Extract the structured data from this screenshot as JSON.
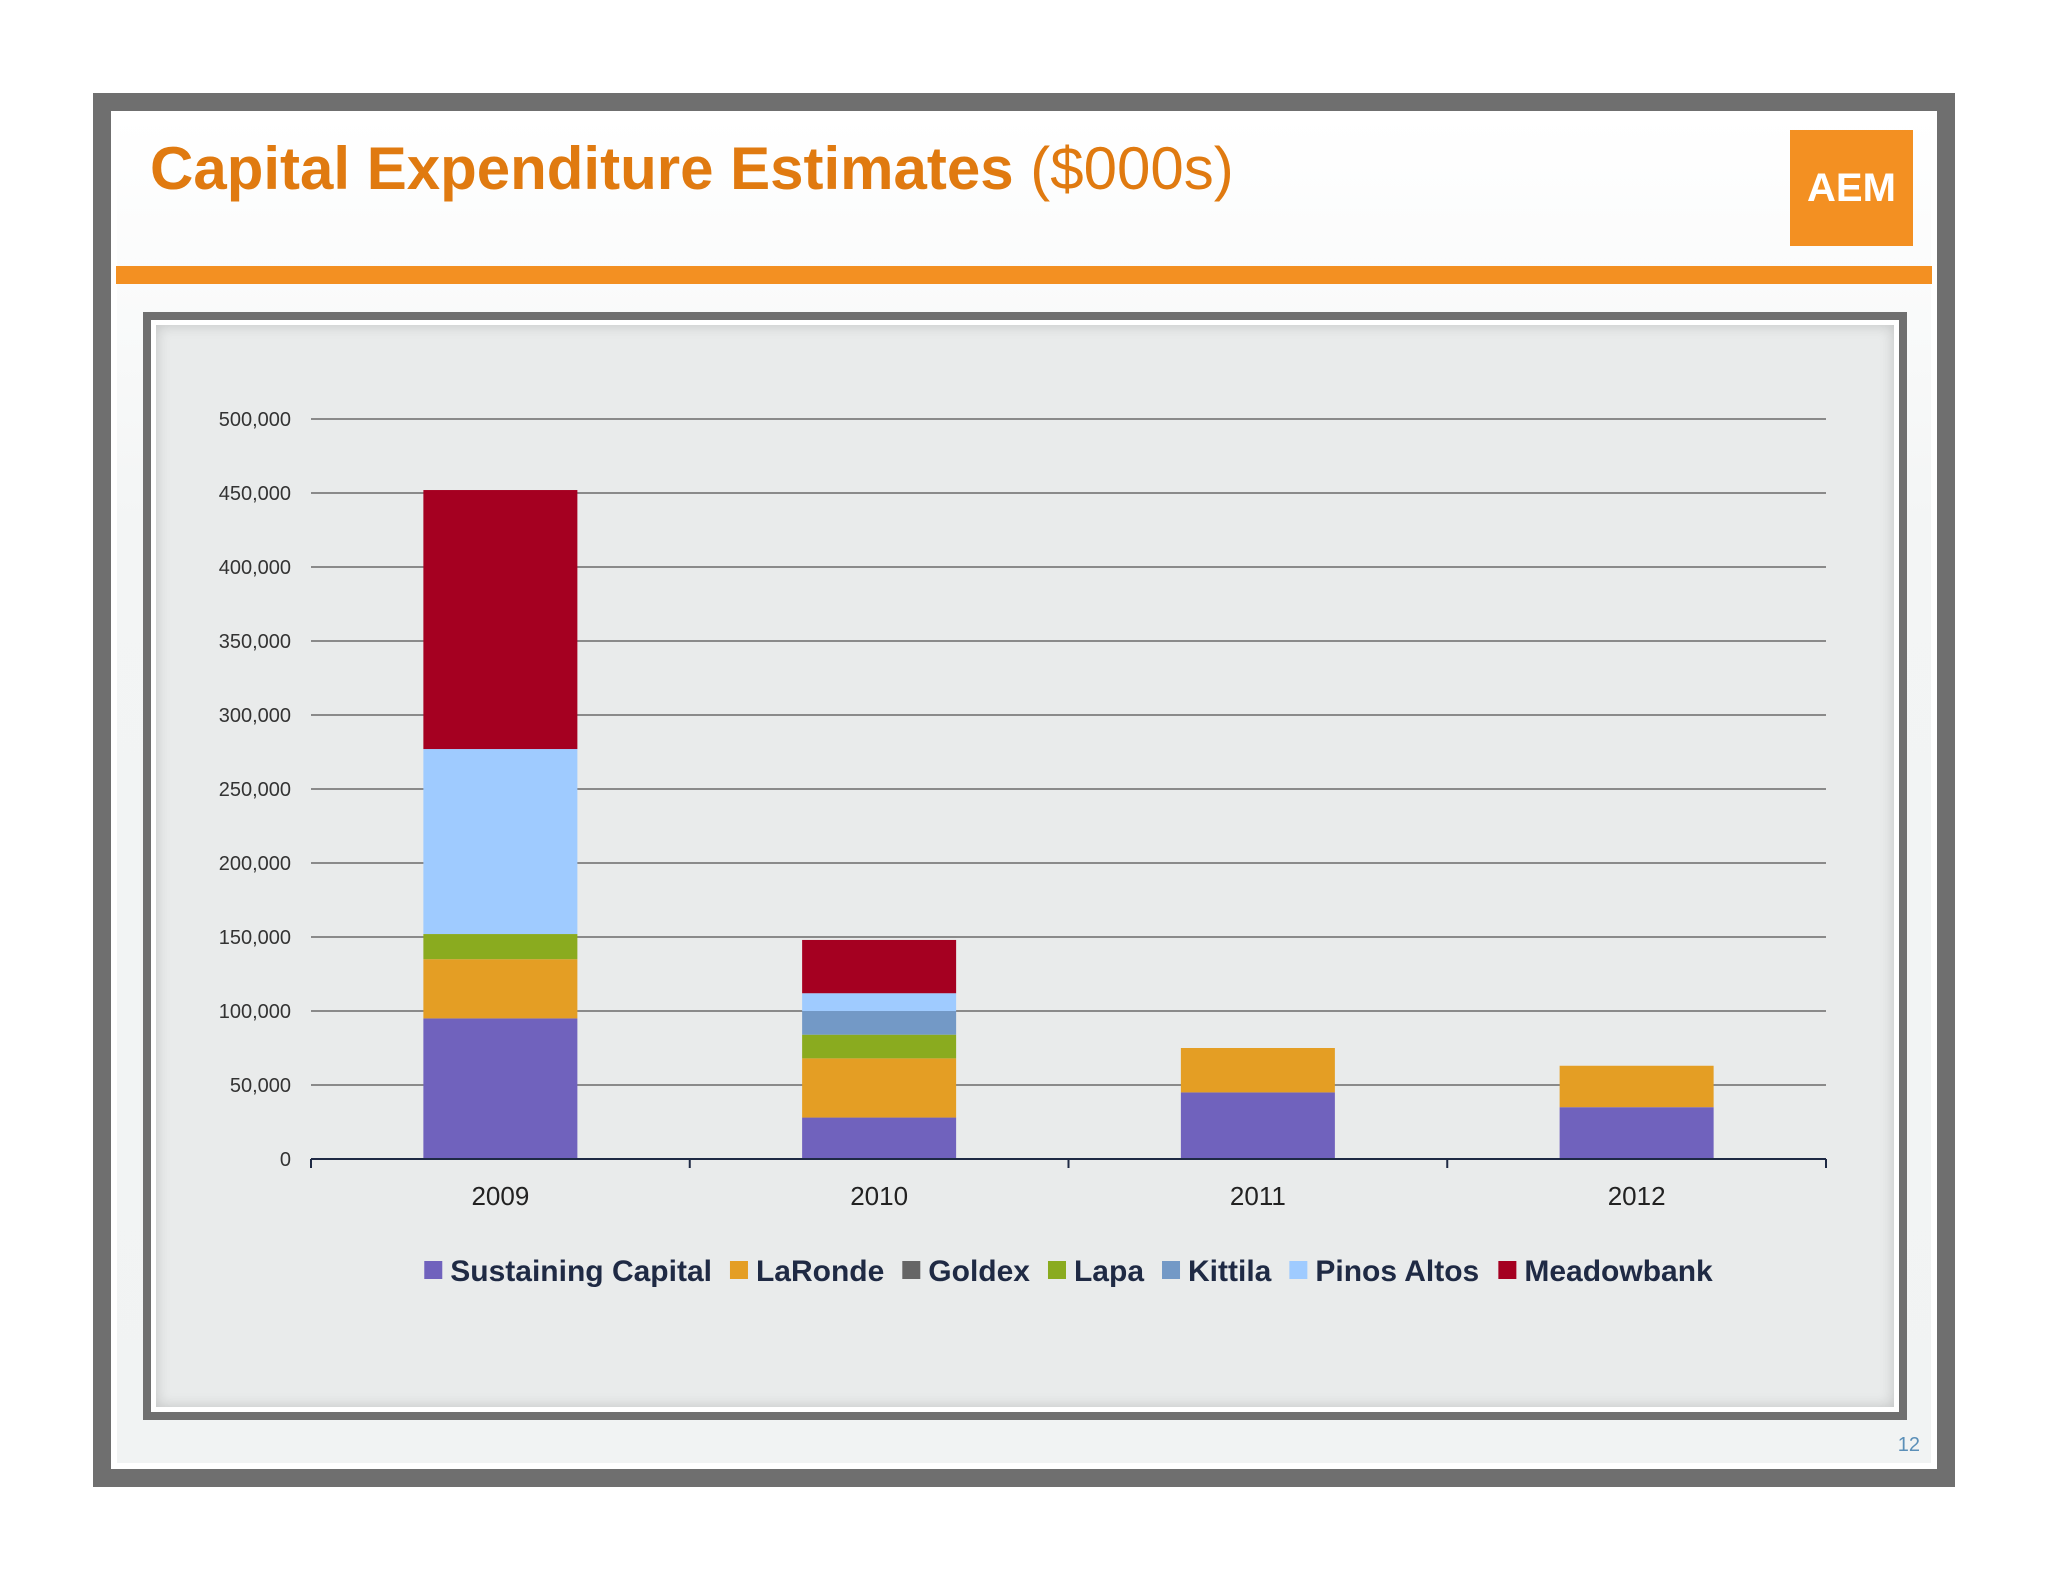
{
  "slide": {
    "title": "Capital Expenditure Estimates",
    "title_unit": "($000s)",
    "logo_text": "AEM",
    "page_number": "12",
    "accent_color": "#f39022",
    "title_color": "#e07a10"
  },
  "chart_data": {
    "type": "bar",
    "stacked": true,
    "categories": [
      "2009",
      "2010",
      "2011",
      "2012"
    ],
    "ylim": [
      0,
      500000
    ],
    "yticks": [
      0,
      50000,
      100000,
      150000,
      200000,
      250000,
      300000,
      350000,
      400000,
      450000,
      500000
    ],
    "ytick_labels": [
      "0",
      "50,000",
      "100,000",
      "150,000",
      "200,000",
      "250,000",
      "300,000",
      "350,000",
      "400,000",
      "450,000",
      "500,000"
    ],
    "grid": true,
    "legend_position": "bottom",
    "series": [
      {
        "name": "Sustaining Capital",
        "color": "#7062bd",
        "values": [
          95000,
          28000,
          45000,
          35000
        ]
      },
      {
        "name": "LaRonde",
        "color": "#e49e24",
        "values": [
          40000,
          40000,
          30000,
          28000
        ]
      },
      {
        "name": "Goldex",
        "color": "#666666",
        "values": [
          0,
          0,
          0,
          0
        ]
      },
      {
        "name": "Lapa",
        "color": "#8aab1f",
        "values": [
          17000,
          16000,
          0,
          0
        ]
      },
      {
        "name": "Kittila",
        "color": "#7399c6",
        "values": [
          0,
          16000,
          0,
          0
        ]
      },
      {
        "name": "Pinos Altos",
        "color": "#9fcbff",
        "values": [
          125000,
          12000,
          0,
          0
        ]
      },
      {
        "name": "Meadowbank",
        "color": "#a50021",
        "values": [
          175000,
          36000,
          0,
          0
        ]
      }
    ]
  }
}
